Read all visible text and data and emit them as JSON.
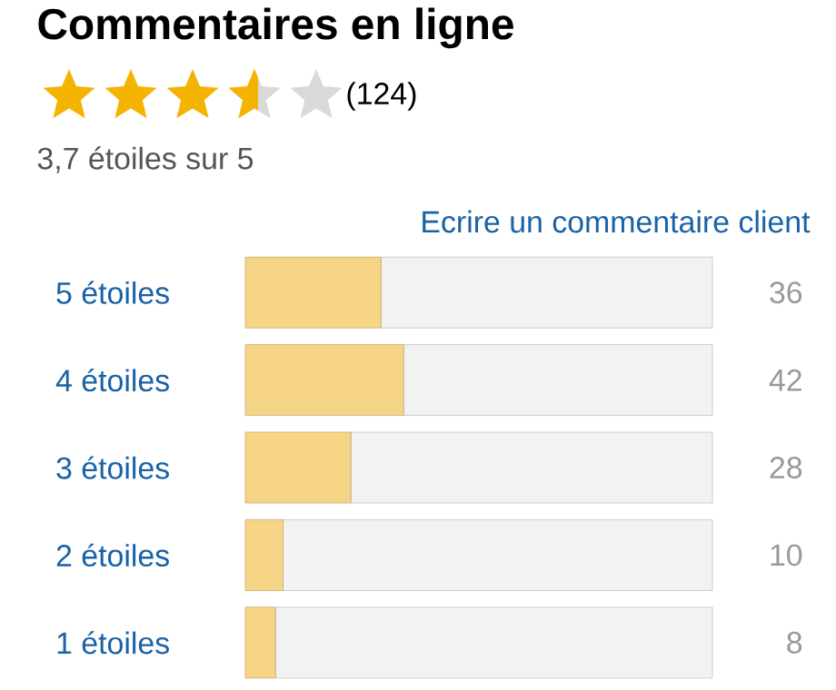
{
  "chart_data": {
    "type": "bar",
    "orientation": "horizontal",
    "stacked": true,
    "title": "Commentaires en ligne",
    "subtitle": "3,7 étoiles sur 5",
    "categories": [
      "5 étoiles",
      "4 étoiles",
      "3 étoiles",
      "2 étoiles",
      "1 étoiles"
    ],
    "series": [
      {
        "color": "#f7d587",
        "values": [
          36,
          42,
          28,
          10,
          8
        ],
        "value_labels": [
          "36",
          "42",
          "28",
          "10",
          "8"
        ]
      },
      {
        "color": "#f2f2f2",
        "values": [
          88,
          82,
          96,
          114,
          116
        ]
      }
    ],
    "tick_labels": "y",
    "annotations": [
      "(124)",
      "Ecrire un commentaire client"
    ]
  }
}
